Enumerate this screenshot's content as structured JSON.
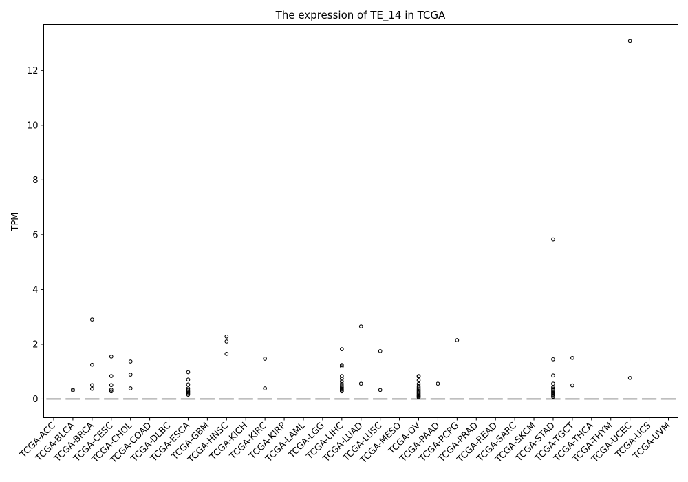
{
  "chart_data": {
    "type": "box",
    "title": "The expression of TE_14 in TCGA",
    "xlabel": "",
    "ylabel": "TPM",
    "ylim": [
      -0.68,
      13.68
    ],
    "yticks": [
      0,
      2,
      4,
      6,
      8,
      10,
      12
    ],
    "grid": false,
    "categories": [
      "TCGA-ACC",
      "TCGA-BLCA",
      "TCGA-BRCA",
      "TCGA-CESC",
      "TCGA-CHOL",
      "TCGA-COAD",
      "TCGA-DLBC",
      "TCGA-ESCA",
      "TCGA-GBM",
      "TCGA-HNSC",
      "TCGA-KICH",
      "TCGA-KIRC",
      "TCGA-KIRP",
      "TCGA-LAML",
      "TCGA-LGG",
      "TCGA-LIHC",
      "TCGA-LUAD",
      "TCGA-LUSC",
      "TCGA-MESO",
      "TCGA-OV",
      "TCGA-PAAD",
      "TCGA-PCPG",
      "TCGA-PRAD",
      "TCGA-READ",
      "TCGA-SARC",
      "TCGA-SKCM",
      "TCGA-STAD",
      "TCGA-TGCT",
      "TCGA-THCA",
      "TCGA-THYM",
      "TCGA-UCEC",
      "TCGA-UCS",
      "TCGA-UVM"
    ],
    "medians": [
      0,
      0,
      0,
      0,
      0,
      0,
      0,
      0,
      0,
      0,
      0,
      0,
      0,
      0,
      0,
      0,
      0,
      0,
      0,
      0,
      0,
      0,
      0,
      0,
      0,
      0,
      0,
      0,
      0,
      0,
      0,
      0,
      0
    ],
    "outliers": [
      [],
      [
        0.31,
        0.34
      ],
      [
        2.9,
        1.25,
        0.51,
        0.37
      ],
      [
        1.55,
        0.84,
        0.51,
        0.34,
        0.28
      ],
      [
        1.37,
        0.89,
        0.39
      ],
      [],
      [],
      [
        0.98,
        0.71,
        0.53,
        0.39,
        0.33,
        0.28,
        0.24,
        0.2,
        0.16
      ],
      [],
      [
        2.28,
        2.1,
        1.65
      ],
      [],
      [
        1.47,
        0.39
      ],
      [],
      [],
      [],
      [
        1.82,
        1.24,
        1.19,
        0.84,
        0.74,
        0.64,
        0.55,
        0.48,
        0.43,
        0.39,
        0.35,
        0.31,
        0.28
      ],
      [
        2.65,
        0.56
      ],
      [
        1.75,
        0.33
      ],
      [],
      [
        0.84,
        0.82,
        0.68,
        0.55,
        0.47,
        0.41,
        0.36,
        0.31,
        0.27,
        0.23,
        0.19,
        0.15,
        0.12,
        0.09,
        0.06
      ],
      [
        0.56
      ],
      [
        2.15
      ],
      [],
      [],
      [],
      [],
      [
        5.83,
        1.45,
        0.86,
        0.56,
        0.43,
        0.38,
        0.33,
        0.28,
        0.24,
        0.2,
        0.16,
        0.12,
        0.08
      ],
      [
        1.5,
        0.5
      ],
      [],
      [],
      [
        13.08,
        0.77
      ],
      [],
      []
    ]
  }
}
